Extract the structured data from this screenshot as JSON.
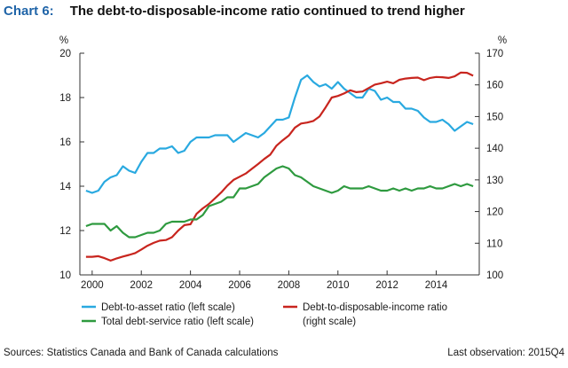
{
  "header": {
    "chart_number": "Chart 6:",
    "title": "The debt-to-disposable-income ratio continued to trend higher"
  },
  "footer": {
    "sources": "Sources: Statistics Canada and Bank of Canada calculations",
    "last_observation": "Last observation: 2015Q4"
  },
  "chart_data": {
    "type": "line",
    "title": "The debt-to-disposable-income ratio continued to trend higher",
    "x_range": [
      1999.5,
      2015.75
    ],
    "x_ticks": [
      2000,
      2002,
      2004,
      2006,
      2008,
      2010,
      2012,
      2014
    ],
    "x_tick_labels": [
      "2000",
      "2002",
      "2004",
      "2006",
      "2008",
      "2010",
      "2012",
      "2014"
    ],
    "left_axis": {
      "unit": "%",
      "ylim": [
        10,
        20
      ],
      "ticks": [
        10,
        12,
        14,
        16,
        18,
        20
      ]
    },
    "right_axis": {
      "unit": "%",
      "ylim": [
        100,
        170
      ],
      "ticks": [
        100,
        110,
        120,
        130,
        140,
        150,
        160,
        170
      ]
    },
    "grid": false,
    "legend": [
      {
        "label": "Debt-to-asset ratio (left scale)",
        "color": "#29a9e0"
      },
      {
        "label": "Debt-to-disposable-income ratio",
        "label_line2": "(right scale)",
        "color": "#c8251e"
      },
      {
        "label": "Total debt-service ratio (left scale)",
        "color": "#2e9a3f"
      }
    ],
    "series": [
      {
        "name": "Debt-to-asset ratio (left scale)",
        "axis": "left",
        "color": "#29a9e0",
        "x": [
          1999.75,
          2000.0,
          2000.25,
          2000.5,
          2000.75,
          2001.0,
          2001.25,
          2001.5,
          2001.75,
          2002.0,
          2002.25,
          2002.5,
          2002.75,
          2003.0,
          2003.25,
          2003.5,
          2003.75,
          2004.0,
          2004.25,
          2004.5,
          2004.75,
          2005.0,
          2005.25,
          2005.5,
          2005.75,
          2006.0,
          2006.25,
          2006.5,
          2006.75,
          2007.0,
          2007.25,
          2007.5,
          2007.75,
          2008.0,
          2008.25,
          2008.5,
          2008.75,
          2009.0,
          2009.25,
          2009.5,
          2009.75,
          2010.0,
          2010.25,
          2010.5,
          2010.75,
          2011.0,
          2011.25,
          2011.5,
          2011.75,
          2012.0,
          2012.25,
          2012.5,
          2012.75,
          2013.0,
          2013.25,
          2013.5,
          2013.75,
          2014.0,
          2014.25,
          2014.5,
          2014.75,
          2015.0,
          2015.25,
          2015.5
        ],
        "y": [
          13.8,
          13.7,
          13.8,
          14.2,
          14.4,
          14.5,
          14.9,
          14.7,
          14.6,
          15.1,
          15.5,
          15.5,
          15.7,
          15.7,
          15.8,
          15.5,
          15.6,
          16.0,
          16.2,
          16.2,
          16.2,
          16.3,
          16.3,
          16.3,
          16.0,
          16.2,
          16.4,
          16.3,
          16.2,
          16.4,
          16.7,
          17.0,
          17.0,
          17.1,
          18.0,
          18.8,
          19.0,
          18.7,
          18.5,
          18.6,
          18.4,
          18.7,
          18.4,
          18.2,
          18.0,
          18.0,
          18.4,
          18.3,
          17.9,
          18.0,
          17.8,
          17.8,
          17.5,
          17.5,
          17.4,
          17.1,
          16.9,
          16.9,
          17.0,
          16.8,
          16.5,
          16.7,
          16.9,
          16.8
        ]
      },
      {
        "name": "Debt-to-disposable-income ratio",
        "axis": "right",
        "color": "#c8251e",
        "x": [
          1999.75,
          2000.0,
          2000.25,
          2000.5,
          2000.75,
          2001.0,
          2001.25,
          2001.5,
          2001.75,
          2002.0,
          2002.25,
          2002.5,
          2002.75,
          2003.0,
          2003.25,
          2003.5,
          2003.75,
          2004.0,
          2004.25,
          2004.5,
          2004.75,
          2005.0,
          2005.25,
          2005.5,
          2005.75,
          2006.0,
          2006.25,
          2006.5,
          2006.75,
          2007.0,
          2007.25,
          2007.5,
          2007.75,
          2008.0,
          2008.25,
          2008.5,
          2008.75,
          2009.0,
          2009.25,
          2009.5,
          2009.75,
          2010.0,
          2010.25,
          2010.5,
          2010.75,
          2011.0,
          2011.25,
          2011.5,
          2011.75,
          2012.0,
          2012.25,
          2012.5,
          2012.75,
          2013.0,
          2013.25,
          2013.5,
          2013.75,
          2014.0,
          2014.25,
          2014.5,
          2014.75,
          2015.0,
          2015.25,
          2015.5
        ],
        "y": [
          105.7,
          105.7,
          105.9,
          105.3,
          104.5,
          105.2,
          105.8,
          106.3,
          106.9,
          108.0,
          109.2,
          110.1,
          110.8,
          111.0,
          111.9,
          114.0,
          115.7,
          116.0,
          119.3,
          121.0,
          122.4,
          124.2,
          126.0,
          128.2,
          130.0,
          131.0,
          132.0,
          133.5,
          135.0,
          136.6,
          138.0,
          140.8,
          142.5,
          144.0,
          146.5,
          147.8,
          148.1,
          148.6,
          150.0,
          152.9,
          156.0,
          156.5,
          157.3,
          158.3,
          157.7,
          157.9,
          159.0,
          160.1,
          160.5,
          161.0,
          160.5,
          161.6,
          162.0,
          162.2,
          162.3,
          161.5,
          162.2,
          162.5,
          162.4,
          162.2,
          162.7,
          163.9,
          163.8,
          162.9
        ]
      },
      {
        "name": "Total debt-service ratio (left scale)",
        "axis": "left",
        "color": "#2e9a3f",
        "x": [
          1999.75,
          2000.0,
          2000.25,
          2000.5,
          2000.75,
          2001.0,
          2001.25,
          2001.5,
          2001.75,
          2002.0,
          2002.25,
          2002.5,
          2002.75,
          2003.0,
          2003.25,
          2003.5,
          2003.75,
          2004.0,
          2004.25,
          2004.5,
          2004.75,
          2005.0,
          2005.25,
          2005.5,
          2005.75,
          2006.0,
          2006.25,
          2006.5,
          2006.75,
          2007.0,
          2007.25,
          2007.5,
          2007.75,
          2008.0,
          2008.25,
          2008.5,
          2008.75,
          2009.0,
          2009.25,
          2009.5,
          2009.75,
          2010.0,
          2010.25,
          2010.5,
          2010.75,
          2011.0,
          2011.25,
          2011.5,
          2011.75,
          2012.0,
          2012.25,
          2012.5,
          2012.75,
          2013.0,
          2013.25,
          2013.5,
          2013.75,
          2014.0,
          2014.25,
          2014.5,
          2014.75,
          2015.0,
          2015.25,
          2015.5
        ],
        "y": [
          12.2,
          12.3,
          12.3,
          12.3,
          12.0,
          12.2,
          11.9,
          11.7,
          11.7,
          11.8,
          11.9,
          11.9,
          12.0,
          12.3,
          12.4,
          12.4,
          12.4,
          12.5,
          12.5,
          12.7,
          13.1,
          13.2,
          13.3,
          13.5,
          13.5,
          13.9,
          13.9,
          14.0,
          14.1,
          14.4,
          14.6,
          14.8,
          14.9,
          14.8,
          14.5,
          14.4,
          14.2,
          14.0,
          13.9,
          13.8,
          13.7,
          13.8,
          14.0,
          13.9,
          13.9,
          13.9,
          14.0,
          13.9,
          13.8,
          13.8,
          13.9,
          13.8,
          13.9,
          13.8,
          13.9,
          13.9,
          14.0,
          13.9,
          13.9,
          14.0,
          14.1,
          14.0,
          14.1,
          14.0
        ]
      }
    ]
  }
}
